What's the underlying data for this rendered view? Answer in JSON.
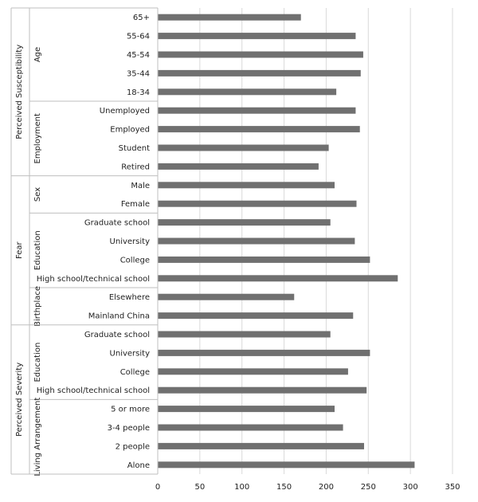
{
  "chart_data": {
    "type": "bar",
    "orientation": "horizontal",
    "categories": [
      "65+",
      "55-64",
      "45-54",
      "35-44",
      "18-34",
      "Unemployed",
      "Employed",
      "Student",
      "Retired",
      "Male",
      "Female",
      "Graduate school",
      "University",
      "College",
      "High school/technical school",
      "Elsewhere",
      "Mainland China",
      "Graduate school",
      "University",
      "College",
      "High school/technical school",
      "5 or more",
      "3-4 people",
      "2 people",
      "Alone"
    ],
    "values": [
      170,
      235,
      244,
      241,
      212,
      235,
      240,
      203,
      191,
      210,
      236,
      205,
      234,
      252,
      285,
      162,
      232,
      205,
      252,
      226,
      248,
      210,
      220,
      245,
      305
    ],
    "subgroups": [
      {
        "label": "Age"
      },
      {
        "label": "Employment"
      },
      {
        "label": "Sex"
      },
      {
        "label": "Education"
      },
      {
        "label": "Birthplace"
      },
      {
        "label": "Education"
      },
      {
        "label": "Living Arrangement"
      }
    ],
    "groups": [
      {
        "label": "Perceived Susceptibility"
      },
      {
        "label": "Fear"
      },
      {
        "label": "Perceived Severity"
      }
    ],
    "xlim": [
      0,
      350
    ],
    "x_ticks": [
      "0",
      "50",
      "100",
      "150",
      "200",
      "250",
      "300",
      "350"
    ],
    "grid": true,
    "bar_color": "#707070",
    "grid_color": "#d9d9d9",
    "title": "",
    "xlabel": "",
    "ylabel": ""
  }
}
